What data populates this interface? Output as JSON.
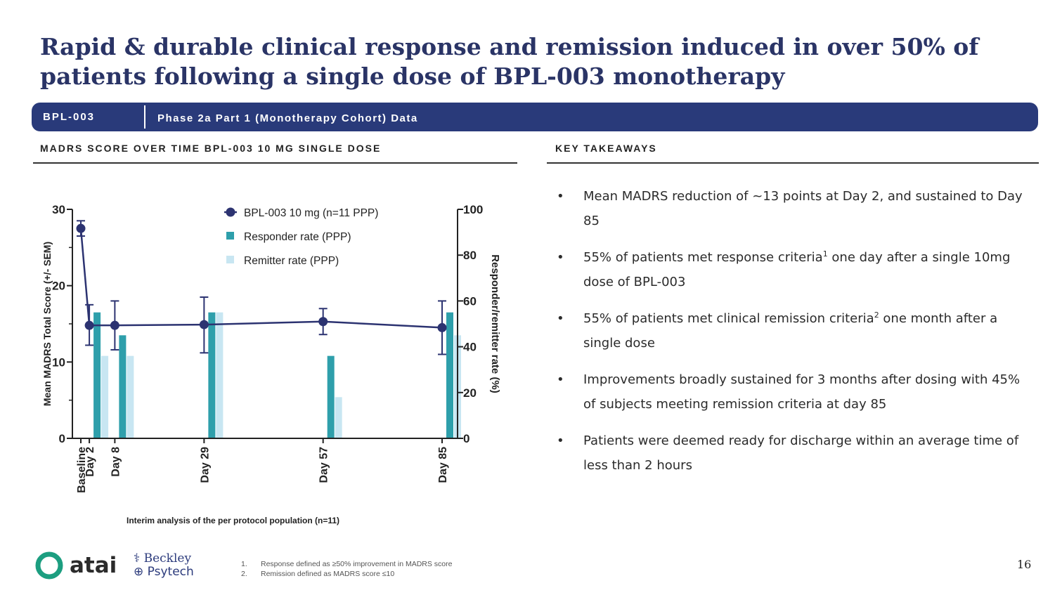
{
  "title": "Rapid & durable clinical response and remission induced in over 50% of patients following a single dose of BPL-003 monotherapy",
  "banner": {
    "tag": "BPL-003",
    "subtitle": "Phase 2a Part 1 (Monotherapy Cohort) Data"
  },
  "left_header": "MADRS SCORE OVER TIME BPL-003 10 MG SINGLE DOSE",
  "right_header": "KEY TAKEAWAYS",
  "takeaways": [
    {
      "text": "Mean MADRS reduction of ~13 points  at Day 2, and sustained to Day 85",
      "sup": "",
      "rest": ""
    },
    {
      "text": "55% of patients met response criteria",
      "sup": "1",
      "rest": " one day after a single 10mg dose of BPL-003"
    },
    {
      "text": "55% of patients met clinical remission criteria",
      "sup": "2",
      "rest": " one month after a single dose"
    },
    {
      "text": "Improvements broadly sustained for 3 months after dosing with 45% of subjects meeting remission criteria at day 85",
      "sup": "",
      "rest": ""
    },
    {
      "text": "Patients were deemed ready for discharge within an average time of less than 2 hours",
      "sup": "",
      "rest": ""
    }
  ],
  "bullet_char": "•",
  "interim_note": "Interim analysis of the per protocol population (n=11)",
  "footnotes": [
    {
      "num": "1.",
      "text": "Response defined as ≥50% improvement in MADRS score"
    },
    {
      "num": "2.",
      "text": "Remission defined as MADRS score ≤10"
    }
  ],
  "page_number": "16",
  "logos": {
    "atai": "atai",
    "beckley_1": "Beckley",
    "beckley_2": "Psytech"
  },
  "colors": {
    "navy": "#293a7a",
    "title": "#2a3466",
    "line": "#2c3371",
    "responder": "#2e9fab",
    "remitter": "#c8e6f2"
  },
  "chart_data": {
    "type": "bar",
    "categories": [
      "Baseline",
      "Day 2",
      "Day 8",
      "Day 29",
      "Day 57",
      "Day 85"
    ],
    "days": [
      0,
      2,
      8,
      29,
      57,
      85
    ],
    "series": [
      {
        "name": "BPL-003 10 mg (n=11 PPP)",
        "kind": "line",
        "axis": "left",
        "values": [
          27.5,
          14.8,
          14.8,
          14.9,
          15.3,
          14.5
        ],
        "sem_upper": [
          28.5,
          17.5,
          18.0,
          18.5,
          17.0,
          18.0
        ],
        "sem_lower": [
          26.5,
          12.2,
          11.6,
          11.2,
          13.6,
          11.0
        ]
      },
      {
        "name": "Responder rate (PPP)",
        "kind": "bar",
        "axis": "right",
        "values": [
          null,
          55,
          45,
          55,
          36,
          55
        ]
      },
      {
        "name": "Remitter rate (PPP)",
        "kind": "bar",
        "axis": "right",
        "values": [
          null,
          36,
          36,
          55,
          18,
          45
        ]
      }
    ],
    "ylabel_left": "Mean MADRS Total Score  (+/- SEM)",
    "ylabel_right": "Responder/remitter rate (%)",
    "ylim_left": [
      0,
      30
    ],
    "ylim_right": [
      0,
      100
    ],
    "yticks_left": [
      "0",
      "10",
      "20",
      "30"
    ],
    "yticks_right": [
      "0",
      "20",
      "40",
      "60",
      "80",
      "100"
    ],
    "legend_position": "top-center"
  }
}
